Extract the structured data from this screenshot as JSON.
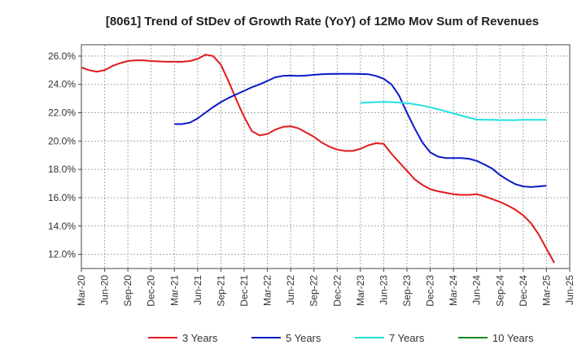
{
  "chart_data": {
    "type": "line",
    "title": "[8061]  Trend of StDev of Growth Rate (YoY) of 12Mo Mov Sum of Revenues",
    "xlabel": "",
    "ylabel": "",
    "ylim": [
      11.0,
      26.8
    ],
    "yticks": [
      12.0,
      14.0,
      16.0,
      18.0,
      20.0,
      22.0,
      24.0,
      26.0
    ],
    "ytick_labels": [
      "12.0%",
      "14.0%",
      "16.0%",
      "18.0%",
      "20.0%",
      "22.0%",
      "24.0%",
      "26.0%"
    ],
    "x_tick_labels": [
      "Mar-20",
      "Jun-20",
      "Sep-20",
      "Dec-20",
      "Mar-21",
      "Jun-21",
      "Sep-21",
      "Dec-21",
      "Mar-22",
      "Jun-22",
      "Sep-22",
      "Dec-22",
      "Mar-23",
      "Jun-23",
      "Sep-23",
      "Dec-23",
      "Mar-24",
      "Jun-24",
      "Sep-24",
      "Dec-24",
      "Mar-25",
      "Jun-25"
    ],
    "x_index_note": "x values are month offsets from Mar-20",
    "grid": true,
    "legend_position": "bottom",
    "series": [
      {
        "name": "3 Years",
        "color": "#e31a1c",
        "points": [
          [
            0,
            25.2
          ],
          [
            1,
            25.0
          ],
          [
            2,
            24.9
          ],
          [
            3,
            25.0
          ],
          [
            4,
            25.3
          ],
          [
            5,
            25.5
          ],
          [
            6,
            25.65
          ],
          [
            7,
            25.7
          ],
          [
            8,
            25.7
          ],
          [
            9,
            25.65
          ],
          [
            10,
            25.62
          ],
          [
            11,
            25.6
          ],
          [
            12,
            25.6
          ],
          [
            13,
            25.6
          ],
          [
            14,
            25.65
          ],
          [
            15,
            25.8
          ],
          [
            16,
            26.1
          ],
          [
            17,
            26.0
          ],
          [
            18,
            25.4
          ],
          [
            19,
            24.2
          ],
          [
            20,
            22.9
          ],
          [
            21,
            21.7
          ],
          [
            22,
            20.7
          ],
          [
            23,
            20.4
          ],
          [
            24,
            20.5
          ],
          [
            25,
            20.8
          ],
          [
            26,
            21.0
          ],
          [
            27,
            21.05
          ],
          [
            28,
            20.9
          ],
          [
            29,
            20.6
          ],
          [
            30,
            20.3
          ],
          [
            31,
            19.9
          ],
          [
            32,
            19.6
          ],
          [
            33,
            19.4
          ],
          [
            34,
            19.3
          ],
          [
            35,
            19.3
          ],
          [
            36,
            19.45
          ],
          [
            37,
            19.7
          ],
          [
            38,
            19.85
          ],
          [
            39,
            19.8
          ],
          [
            40,
            19.1
          ],
          [
            41,
            18.5
          ],
          [
            42,
            17.9
          ],
          [
            43,
            17.3
          ],
          [
            44,
            16.9
          ],
          [
            45,
            16.6
          ],
          [
            46,
            16.45
          ],
          [
            47,
            16.35
          ],
          [
            48,
            16.25
          ],
          [
            49,
            16.2
          ],
          [
            50,
            16.2
          ],
          [
            51,
            16.25
          ],
          [
            52,
            16.1
          ],
          [
            53,
            15.9
          ],
          [
            54,
            15.7
          ],
          [
            55,
            15.45
          ],
          [
            56,
            15.15
          ],
          [
            57,
            14.75
          ],
          [
            58,
            14.2
          ],
          [
            59,
            13.4
          ],
          [
            60,
            12.4
          ],
          [
            61,
            11.4
          ]
        ]
      },
      {
        "name": "5 Years",
        "color": "#0a18c8",
        "points": [
          [
            12,
            21.2
          ],
          [
            13,
            21.2
          ],
          [
            14,
            21.3
          ],
          [
            15,
            21.6
          ],
          [
            16,
            22.0
          ],
          [
            17,
            22.4
          ],
          [
            18,
            22.75
          ],
          [
            19,
            23.05
          ],
          [
            20,
            23.3
          ],
          [
            21,
            23.55
          ],
          [
            22,
            23.8
          ],
          [
            23,
            24.0
          ],
          [
            24,
            24.25
          ],
          [
            25,
            24.5
          ],
          [
            26,
            24.6
          ],
          [
            27,
            24.62
          ],
          [
            28,
            24.6
          ],
          [
            29,
            24.62
          ],
          [
            30,
            24.68
          ],
          [
            31,
            24.72
          ],
          [
            32,
            24.74
          ],
          [
            33,
            24.75
          ],
          [
            34,
            24.75
          ],
          [
            35,
            24.75
          ],
          [
            36,
            24.74
          ],
          [
            37,
            24.72
          ],
          [
            38,
            24.6
          ],
          [
            39,
            24.4
          ],
          [
            40,
            24.0
          ],
          [
            41,
            23.2
          ],
          [
            42,
            22.0
          ],
          [
            43,
            20.9
          ],
          [
            44,
            19.9
          ],
          [
            45,
            19.2
          ],
          [
            46,
            18.9
          ],
          [
            47,
            18.8
          ],
          [
            48,
            18.8
          ],
          [
            49,
            18.8
          ],
          [
            50,
            18.75
          ],
          [
            51,
            18.6
          ],
          [
            52,
            18.35
          ],
          [
            53,
            18.05
          ],
          [
            54,
            17.6
          ],
          [
            55,
            17.25
          ],
          [
            56,
            16.95
          ],
          [
            57,
            16.8
          ],
          [
            58,
            16.75
          ],
          [
            59,
            16.8
          ],
          [
            60,
            16.85
          ]
        ]
      },
      {
        "name": "7 Years",
        "color": "#22e0e0",
        "points": [
          [
            36,
            22.7
          ],
          [
            37,
            22.72
          ],
          [
            38,
            22.75
          ],
          [
            39,
            22.76
          ],
          [
            40,
            22.75
          ],
          [
            41,
            22.72
          ],
          [
            42,
            22.68
          ],
          [
            43,
            22.6
          ],
          [
            44,
            22.5
          ],
          [
            45,
            22.38
          ],
          [
            46,
            22.25
          ],
          [
            47,
            22.1
          ],
          [
            48,
            21.95
          ],
          [
            49,
            21.8
          ],
          [
            50,
            21.65
          ],
          [
            51,
            21.52
          ],
          [
            52,
            21.5
          ],
          [
            53,
            21.5
          ],
          [
            54,
            21.48
          ],
          [
            55,
            21.48
          ],
          [
            56,
            21.48
          ],
          [
            57,
            21.5
          ],
          [
            58,
            21.5
          ],
          [
            59,
            21.5
          ],
          [
            60,
            21.5
          ]
        ]
      },
      {
        "name": "10 Years",
        "color": "#1a8a1a",
        "points": []
      }
    ]
  }
}
